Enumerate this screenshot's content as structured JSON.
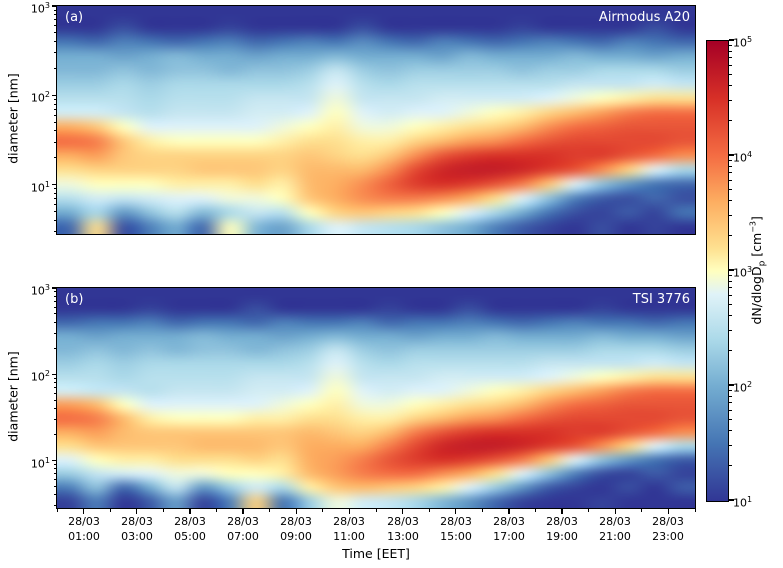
{
  "figure": {
    "background": "#ffffff"
  },
  "axes": {
    "y_label": "diameter [nm]",
    "x_label": "Time [EET]",
    "y_ticks": [
      {
        "base": "10",
        "exp": "3"
      },
      {
        "base": "10",
        "exp": "2"
      },
      {
        "base": "10",
        "exp": "1"
      }
    ],
    "x_ticks": [
      {
        "date": "28/03",
        "time": "01:00"
      },
      {
        "date": "28/03",
        "time": "03:00"
      },
      {
        "date": "28/03",
        "time": "05:00"
      },
      {
        "date": "28/03",
        "time": "07:00"
      },
      {
        "date": "28/03",
        "time": "09:00"
      },
      {
        "date": "28/03",
        "time": "11:00"
      },
      {
        "date": "28/03",
        "time": "13:00"
      },
      {
        "date": "28/03",
        "time": "15:00"
      },
      {
        "date": "28/03",
        "time": "17:00"
      },
      {
        "date": "28/03",
        "time": "19:00"
      },
      {
        "date": "28/03",
        "time": "21:00"
      },
      {
        "date": "28/03",
        "time": "23:00"
      }
    ]
  },
  "colorbar": {
    "label": {
      "pre": "dN/dlogD",
      "sub": "p",
      "mid": " [cm",
      "sup": "−3",
      "post": "]"
    },
    "ticks": [
      {
        "base": "10",
        "exp": "5"
      },
      {
        "base": "10",
        "exp": "4"
      },
      {
        "base": "10",
        "exp": "3"
      },
      {
        "base": "10",
        "exp": "2"
      },
      {
        "base": "10",
        "exp": "1"
      }
    ]
  },
  "colormap": {
    "name": "RdYlBu_r",
    "stops": [
      {
        "v": 1.0,
        "color": "#313695"
      },
      {
        "v": 1.5,
        "color": "#4575b4"
      },
      {
        "v": 2.0,
        "color": "#74add1"
      },
      {
        "v": 2.4,
        "color": "#abd9e9"
      },
      {
        "v": 2.8,
        "color": "#e0f3f8"
      },
      {
        "v": 3.0,
        "color": "#ffffbf"
      },
      {
        "v": 3.2,
        "color": "#fee090"
      },
      {
        "v": 3.6,
        "color": "#fdae61"
      },
      {
        "v": 4.0,
        "color": "#f46d43"
      },
      {
        "v": 4.5,
        "color": "#d73027"
      },
      {
        "v": 5.0,
        "color": "#a50026"
      }
    ]
  },
  "chart_data": [
    {
      "type": "heatmap",
      "panel": "a",
      "panel_label": "(a)",
      "title": "Airmodus A20",
      "x_start_hour": 0,
      "x_end_hour": 24,
      "n_cols": 24,
      "y_scale": "log",
      "y_top_nm": 1000,
      "y_bottom_nm": 2.8,
      "y_centers_nm": [
        700,
        450,
        300,
        200,
        140,
        100,
        70,
        50,
        34,
        22,
        15,
        10,
        7,
        5,
        4,
        3
      ],
      "value": "log10(dN/dlogDp) in cm^-3",
      "vmin_log10": 1,
      "vmax_log10": 5,
      "grid_log10": [
        [
          1.0,
          1.0,
          1.0,
          1.0,
          1.0,
          1.0,
          1.0,
          1.0,
          1.0,
          1.0,
          1.0,
          1.0,
          1.0,
          1.0,
          1.0,
          1.0,
          1.0,
          1.0,
          1.0,
          1.0,
          1.0,
          1.0,
          1.0,
          1.0
        ],
        [
          1.0,
          1.0,
          1.2,
          1.0,
          1.0,
          1.0,
          1.1,
          1.0,
          1.0,
          1.0,
          1.0,
          1.2,
          1.0,
          1.0,
          1.0,
          1.0,
          1.0,
          1.1,
          1.0,
          1.0,
          1.0,
          1.0,
          1.2,
          1.0
        ],
        [
          1.5,
          1.4,
          1.6,
          1.5,
          1.4,
          1.5,
          1.6,
          1.4,
          1.5,
          1.6,
          1.5,
          1.7,
          1.5,
          1.4,
          1.6,
          1.5,
          1.4,
          1.5,
          1.6,
          1.5,
          1.4,
          1.6,
          1.5,
          1.4
        ],
        [
          2.0,
          2.0,
          1.9,
          2.0,
          2.1,
          2.0,
          2.0,
          1.9,
          2.0,
          2.0,
          2.1,
          2.0,
          2.0,
          2.0,
          1.9,
          2.1,
          2.0,
          2.0,
          2.0,
          2.1,
          2.0,
          2.0,
          1.9,
          2.0
        ],
        [
          2.1,
          2.1,
          2.2,
          2.1,
          2.2,
          2.2,
          2.1,
          2.2,
          2.2,
          2.3,
          2.6,
          2.3,
          2.2,
          2.3,
          2.3,
          2.3,
          2.3,
          2.2,
          2.3,
          2.3,
          2.4,
          2.4,
          2.4,
          2.3
        ],
        [
          2.3,
          2.3,
          2.4,
          2.3,
          2.4,
          2.4,
          2.4,
          2.4,
          2.4,
          2.5,
          2.8,
          2.5,
          2.4,
          2.5,
          2.5,
          2.5,
          2.5,
          2.5,
          2.5,
          2.6,
          2.6,
          2.6,
          2.7,
          2.6
        ],
        [
          2.5,
          2.5,
          2.5,
          2.4,
          2.5,
          2.5,
          2.5,
          2.6,
          2.6,
          2.6,
          2.9,
          2.6,
          2.6,
          2.6,
          2.7,
          2.7,
          2.7,
          2.7,
          2.8,
          2.9,
          3.0,
          3.1,
          3.2,
          3.2
        ],
        [
          2.7,
          2.7,
          2.6,
          2.5,
          2.6,
          2.6,
          2.6,
          2.7,
          2.7,
          2.8,
          3.0,
          2.8,
          2.7,
          2.8,
          2.8,
          2.9,
          3.0,
          3.1,
          3.3,
          3.5,
          3.7,
          3.9,
          4.0,
          4.0
        ],
        [
          3.6,
          3.4,
          3.0,
          2.8,
          2.8,
          2.8,
          2.8,
          2.8,
          2.9,
          3.0,
          3.1,
          2.9,
          2.9,
          3.0,
          3.1,
          3.2,
          3.3,
          3.5,
          3.8,
          4.0,
          4.1,
          4.2,
          4.2,
          4.2
        ],
        [
          4.0,
          3.9,
          3.4,
          3.1,
          3.0,
          3.0,
          3.0,
          3.0,
          3.1,
          3.2,
          3.2,
          3.1,
          3.1,
          3.3,
          3.5,
          3.7,
          3.8,
          4.0,
          4.2,
          4.3,
          4.3,
          4.3,
          4.3,
          4.2
        ],
        [
          3.6,
          3.7,
          3.4,
          3.3,
          3.3,
          3.3,
          3.3,
          3.3,
          3.3,
          3.4,
          3.3,
          3.2,
          3.4,
          3.8,
          4.2,
          4.4,
          4.5,
          4.5,
          4.5,
          4.4,
          4.4,
          4.2,
          4.0,
          3.8
        ],
        [
          3.2,
          3.3,
          3.3,
          3.3,
          3.3,
          3.4,
          3.4,
          3.4,
          3.3,
          3.5,
          3.5,
          3.5,
          3.8,
          4.3,
          4.6,
          4.7,
          4.7,
          4.6,
          4.4,
          4.2,
          3.8,
          3.3,
          2.8,
          2.4
        ],
        [
          2.9,
          3.0,
          3.0,
          3.0,
          3.1,
          3.1,
          3.1,
          3.2,
          3.1,
          3.5,
          3.6,
          3.8,
          4.1,
          4.4,
          4.5,
          4.4,
          4.2,
          3.9,
          3.4,
          2.8,
          2.2,
          1.8,
          1.5,
          1.4
        ],
        [
          2.5,
          2.7,
          2.6,
          2.7,
          2.8,
          2.8,
          2.9,
          2.9,
          3.0,
          3.4,
          3.6,
          3.8,
          3.9,
          3.9,
          3.8,
          3.6,
          3.2,
          2.8,
          2.2,
          1.6,
          1.3,
          1.2,
          1.4,
          1.2
        ],
        [
          2.0,
          2.4,
          1.8,
          2.2,
          2.5,
          2.1,
          2.4,
          2.6,
          2.5,
          3.0,
          3.3,
          3.4,
          3.3,
          3.2,
          3.0,
          2.8,
          2.4,
          2.0,
          1.5,
          1.2,
          1.1,
          1.3,
          1.1,
          1.5
        ],
        [
          1.4,
          3.2,
          1.2,
          1.6,
          2.0,
          1.4,
          3.0,
          2.1,
          1.9,
          2.4,
          2.8,
          2.6,
          2.5,
          2.4,
          2.2,
          2.0,
          1.6,
          1.3,
          1.1,
          1.0,
          1.2,
          1.0,
          1.1,
          1.0
        ]
      ]
    },
    {
      "type": "heatmap",
      "panel": "b",
      "panel_label": "(b)",
      "title": "TSI 3776",
      "x_start_hour": 0,
      "x_end_hour": 24,
      "n_cols": 24,
      "y_scale": "log",
      "y_top_nm": 1000,
      "y_bottom_nm": 2.8,
      "y_centers_nm": [
        700,
        450,
        300,
        200,
        140,
        100,
        70,
        50,
        34,
        22,
        15,
        10,
        7,
        5,
        4,
        3
      ],
      "value": "log10(dN/dlogDp) in cm^-3",
      "vmin_log10": 1,
      "vmax_log10": 5,
      "grid_log10": [
        [
          1.0,
          1.0,
          1.0,
          1.0,
          1.0,
          1.0,
          1.0,
          1.0,
          1.0,
          1.0,
          1.0,
          1.0,
          1.0,
          1.0,
          1.0,
          1.0,
          1.0,
          1.0,
          1.0,
          1.0,
          1.0,
          1.0,
          1.0,
          1.0
        ],
        [
          1.0,
          1.0,
          1.0,
          1.1,
          1.0,
          1.0,
          1.0,
          1.2,
          1.0,
          1.0,
          1.0,
          1.0,
          1.1,
          1.0,
          1.0,
          1.2,
          1.0,
          1.0,
          1.0,
          1.0,
          1.1,
          1.0,
          1.0,
          1.0
        ],
        [
          1.4,
          1.5,
          1.5,
          1.6,
          1.4,
          1.5,
          1.5,
          1.4,
          1.6,
          1.5,
          1.5,
          1.6,
          1.4,
          1.5,
          1.5,
          1.6,
          1.5,
          1.4,
          1.5,
          1.6,
          1.5,
          1.5,
          1.4,
          1.5
        ],
        [
          2.0,
          1.9,
          2.0,
          2.0,
          2.0,
          2.1,
          2.0,
          2.0,
          1.9,
          2.0,
          2.1,
          2.0,
          2.0,
          1.9,
          2.0,
          2.0,
          2.1,
          2.0,
          2.0,
          2.0,
          2.1,
          2.0,
          2.0,
          1.9
        ],
        [
          2.1,
          2.2,
          2.1,
          2.2,
          2.1,
          2.2,
          2.2,
          2.1,
          2.2,
          2.3,
          2.6,
          2.3,
          2.2,
          2.3,
          2.3,
          2.3,
          2.3,
          2.3,
          2.3,
          2.3,
          2.4,
          2.4,
          2.4,
          2.3
        ],
        [
          2.3,
          2.4,
          2.3,
          2.4,
          2.4,
          2.4,
          2.4,
          2.4,
          2.4,
          2.5,
          2.8,
          2.5,
          2.4,
          2.5,
          2.5,
          2.5,
          2.5,
          2.5,
          2.6,
          2.6,
          2.6,
          2.6,
          2.7,
          2.6
        ],
        [
          2.5,
          2.5,
          2.4,
          2.5,
          2.5,
          2.5,
          2.5,
          2.6,
          2.6,
          2.6,
          2.9,
          2.6,
          2.6,
          2.6,
          2.7,
          2.7,
          2.7,
          2.7,
          2.8,
          2.9,
          3.0,
          3.1,
          3.2,
          3.2
        ],
        [
          2.7,
          2.6,
          2.6,
          2.5,
          2.6,
          2.6,
          2.6,
          2.7,
          2.7,
          2.8,
          3.0,
          2.8,
          2.7,
          2.8,
          2.8,
          2.9,
          3.0,
          3.1,
          3.3,
          3.5,
          3.7,
          3.9,
          4.0,
          4.0
        ],
        [
          3.7,
          3.5,
          3.0,
          2.8,
          2.8,
          2.8,
          2.8,
          2.8,
          2.9,
          3.0,
          3.1,
          2.9,
          2.9,
          3.0,
          3.1,
          3.2,
          3.3,
          3.5,
          3.8,
          4.0,
          4.1,
          4.2,
          4.2,
          4.2
        ],
        [
          4.0,
          3.9,
          3.5,
          3.1,
          3.0,
          3.0,
          3.0,
          3.1,
          3.1,
          3.2,
          3.2,
          3.1,
          3.1,
          3.3,
          3.5,
          3.7,
          3.8,
          4.0,
          4.2,
          4.3,
          4.3,
          4.3,
          4.3,
          4.2
        ],
        [
          3.6,
          3.7,
          3.5,
          3.4,
          3.4,
          3.4,
          3.4,
          3.4,
          3.4,
          3.5,
          3.4,
          3.3,
          3.5,
          3.9,
          4.2,
          4.4,
          4.5,
          4.5,
          4.5,
          4.4,
          4.4,
          4.2,
          4.0,
          3.8
        ],
        [
          3.2,
          3.4,
          3.4,
          3.4,
          3.4,
          3.5,
          3.5,
          3.5,
          3.4,
          3.6,
          3.6,
          3.6,
          3.9,
          4.3,
          4.6,
          4.7,
          4.7,
          4.6,
          4.4,
          4.2,
          3.8,
          3.3,
          2.8,
          2.4
        ],
        [
          2.8,
          3.0,
          3.1,
          3.1,
          3.2,
          3.2,
          3.2,
          3.3,
          3.2,
          3.6,
          3.7,
          3.9,
          4.2,
          4.4,
          4.5,
          4.4,
          4.2,
          3.9,
          3.4,
          2.8,
          2.2,
          1.8,
          1.5,
          1.3
        ],
        [
          2.3,
          2.6,
          2.7,
          2.8,
          2.9,
          2.9,
          3.0,
          3.0,
          3.1,
          3.5,
          3.7,
          3.9,
          4.0,
          4.0,
          3.8,
          3.6,
          3.2,
          2.8,
          2.2,
          1.6,
          1.2,
          1.1,
          1.3,
          1.1
        ],
        [
          1.6,
          2.2,
          1.4,
          2.0,
          2.6,
          1.8,
          2.3,
          2.7,
          2.4,
          3.1,
          3.4,
          3.5,
          3.4,
          3.3,
          3.1,
          2.8,
          2.3,
          1.8,
          1.3,
          1.1,
          1.0,
          1.2,
          1.0,
          1.3
        ],
        [
          1.1,
          1.6,
          1.0,
          1.3,
          1.9,
          1.1,
          1.6,
          3.3,
          1.5,
          2.3,
          2.9,
          2.7,
          2.6,
          2.4,
          2.1,
          1.8,
          1.4,
          1.1,
          1.0,
          1.0,
          1.1,
          1.0,
          1.0,
          1.0
        ]
      ]
    }
  ]
}
